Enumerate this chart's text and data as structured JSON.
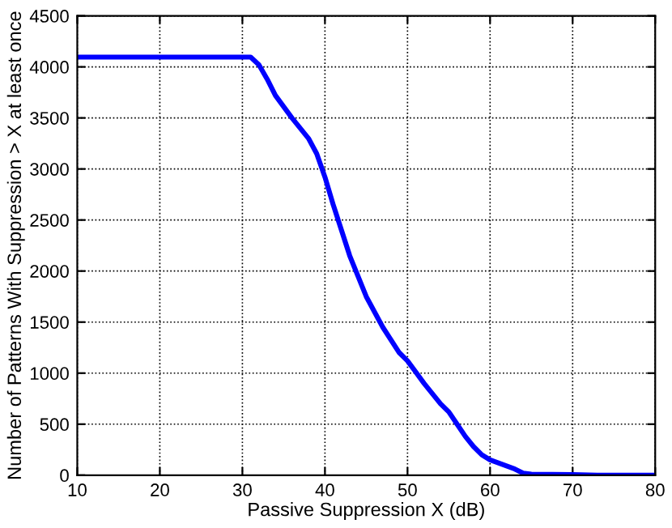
{
  "chart_data": {
    "type": "line",
    "xlabel": "Passive Suppression X (dB)",
    "ylabel": "Number of Patterns With Suppression > X at least once",
    "x": [
      10,
      20,
      31,
      32,
      33,
      34,
      36,
      38,
      39,
      40,
      41,
      42,
      43,
      45,
      47,
      49,
      50,
      52,
      54,
      55,
      56,
      57,
      58,
      59,
      60,
      62,
      63,
      64,
      65,
      70,
      73,
      80
    ],
    "series": [
      {
        "color": "#0000ff",
        "values": [
          4096,
          4096,
          4096,
          4020,
          3880,
          3720,
          3500,
          3300,
          3150,
          2920,
          2650,
          2400,
          2150,
          1750,
          1450,
          1200,
          1120,
          900,
          700,
          620,
          500,
          380,
          280,
          200,
          150,
          90,
          60,
          20,
          10,
          5,
          0,
          0
        ]
      }
    ],
    "xlim": [
      10,
      80
    ],
    "ylim": [
      0,
      4500
    ],
    "xticks": [
      10,
      20,
      30,
      40,
      50,
      60,
      70,
      80
    ],
    "yticks": [
      0,
      500,
      1000,
      1500,
      2000,
      2500,
      3000,
      3500,
      4000,
      4500
    ],
    "grid": true,
    "line_style": "solid",
    "marker": "none"
  }
}
